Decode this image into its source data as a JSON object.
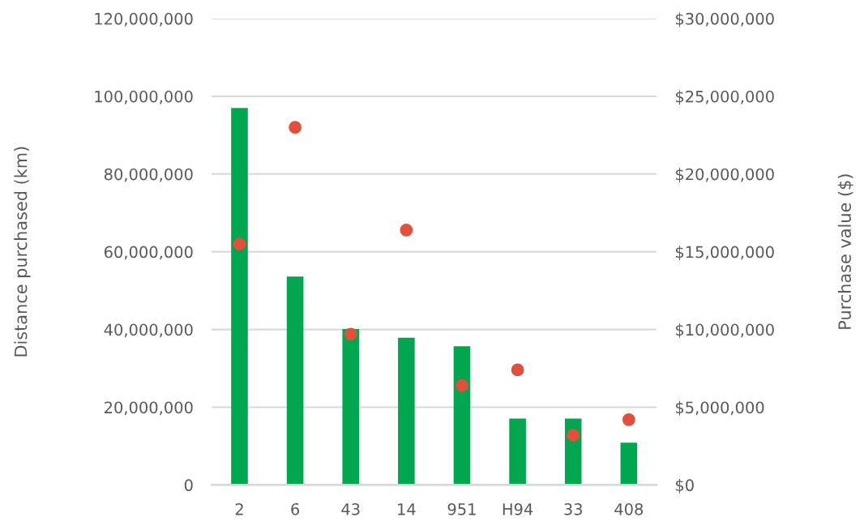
{
  "chart_data": {
    "type": "bar",
    "categories": [
      "2",
      "6",
      "43",
      "14",
      "951",
      "H94",
      "33",
      "408"
    ],
    "ylabel": "Distance purchased (km)",
    "y2label": "Purchase value ($)",
    "series": [
      {
        "color": "#00a650",
        "values": [
          97000000,
          53600000,
          40100000,
          37900000,
          35700000,
          17100000,
          17100000,
          10900000
        ]
      },
      {
        "type": "scatter",
        "axis": "y2",
        "color": "#e0503c",
        "values": [
          15500000,
          23000000,
          9700000,
          16400000,
          6400000,
          7400000,
          3200000,
          4200000
        ]
      }
    ],
    "ylim": [
      0,
      120000000
    ],
    "yticks": [
      {
        "value": 0,
        "label": "0"
      },
      {
        "value": 20000000,
        "label": "20,000,000"
      },
      {
        "value": 40000000,
        "label": "40,000,000"
      },
      {
        "value": 60000000,
        "label": "60,000,000"
      },
      {
        "value": 80000000,
        "label": "80,000,000"
      },
      {
        "value": 100000000,
        "label": "100,000,000"
      },
      {
        "value": 120000000,
        "label": "120,000,000"
      }
    ],
    "y2lim": [
      0,
      30000000
    ],
    "y2ticks": [
      {
        "value": 0,
        "label": "$0"
      },
      {
        "value": 5000000,
        "label": "$5,000,000"
      },
      {
        "value": 10000000,
        "label": "$10,000,000"
      },
      {
        "value": 15000000,
        "label": "$15,000,000"
      },
      {
        "value": 20000000,
        "label": "$20,000,000"
      },
      {
        "value": 25000000,
        "label": "$25,000,000"
      },
      {
        "value": 30000000,
        "label": "$30,000,000"
      }
    ],
    "grid": "y",
    "marker": "circle",
    "legend": false
  }
}
